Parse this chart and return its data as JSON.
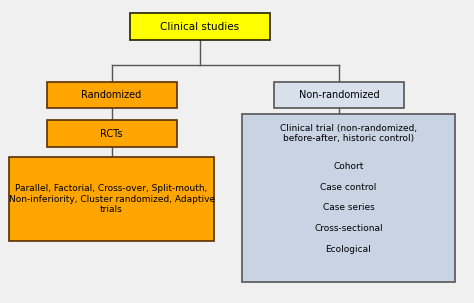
{
  "title": "Clinical studies",
  "title_box_color": "#FFFF00",
  "title_box_edge": "#222200",
  "randomized_label": "Randomized",
  "randomized_box_color": "#FFA500",
  "randomized_box_edge": "#5A3000",
  "rcts_label": "RCTs",
  "rcts_box_color": "#FFA500",
  "rcts_box_edge": "#5A3000",
  "left_bottom_label": "Parallel, Factorial, Cross-over, Split-mouth,\nNon-inferiority, Cluster randomized, Adaptive\ntrials",
  "left_bottom_box_color": "#FFA500",
  "left_bottom_box_edge": "#5A3000",
  "nonrandomized_label": "Non-randomized",
  "nonrandomized_box_color": "#D8E0EC",
  "nonrandomized_box_edge": "#555555",
  "right_big_box_color": "#C8D4E4",
  "right_big_box_edge": "#555555",
  "right_items": [
    "Clinical trial (non-randomized,\nbefore-after, historic control)",
    "Cohort",
    "Case control",
    "Case series",
    "Cross-sectional",
    "Ecological"
  ],
  "background_color": "#f0f0f0",
  "line_color": "#555555",
  "font_size": 7,
  "figsize": [
    4.74,
    3.03
  ],
  "dpi": 100
}
